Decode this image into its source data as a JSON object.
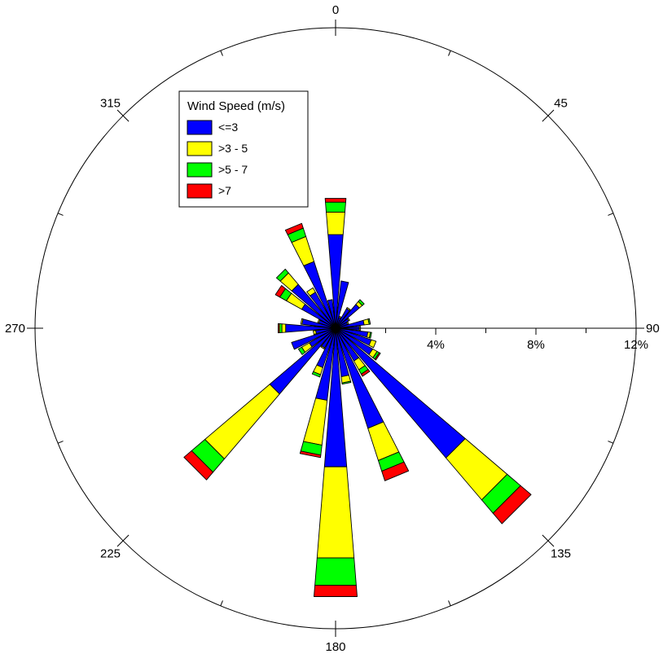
{
  "chart_data": {
    "type": "wind-rose",
    "legend": {
      "title": "Wind Speed (m/s)",
      "placement": "top-left",
      "bins": [
        {
          "label": "<=3",
          "color": "#0000ff"
        },
        {
          "label": ">3 - 5",
          "color": "#ffff00"
        },
        {
          "label": ">5 - 7",
          "color": "#00ff00"
        },
        {
          "label": ">7",
          "color": "#ff0000"
        }
      ]
    },
    "direction_labels": [
      {
        "angle": 0,
        "text": "0"
      },
      {
        "angle": 45,
        "text": "45"
      },
      {
        "angle": 90,
        "text": "90"
      },
      {
        "angle": 135,
        "text": "135"
      },
      {
        "angle": 180,
        "text": "180"
      },
      {
        "angle": 225,
        "text": "225"
      },
      {
        "angle": 270,
        "text": "270"
      },
      {
        "angle": 315,
        "text": "315"
      }
    ],
    "radial_axis": {
      "max": 12,
      "ticks": [
        {
          "value": 4,
          "text": "4%"
        },
        {
          "value": 8,
          "text": "8%"
        },
        {
          "value": 12,
          "text": "12%"
        }
      ],
      "minor_tick_step": 2
    },
    "directions": [
      {
        "dir": 0,
        "stack": [
          3.75,
          0.9,
          0.4,
          0.15
        ]
      },
      {
        "dir": 11.25,
        "stack": [
          1.9,
          0.0,
          0.0,
          0.0
        ]
      },
      {
        "dir": 22.5,
        "stack": [
          0.45,
          0.05,
          0.0,
          0.0
        ]
      },
      {
        "dir": 33.75,
        "stack": [
          0.9,
          0.05,
          0.0,
          0.0
        ]
      },
      {
        "dir": 45,
        "stack": [
          1.25,
          0.15,
          0.1,
          0.0
        ]
      },
      {
        "dir": 56.25,
        "stack": [
          0.6,
          0.05,
          0.0,
          0.0
        ]
      },
      {
        "dir": 67.5,
        "stack": [
          0.5,
          0.05,
          0.0,
          0.0
        ]
      },
      {
        "dir": 78.75,
        "stack": [
          1.15,
          0.2,
          0.05,
          0.0
        ]
      },
      {
        "dir": 90,
        "stack": [
          0.95,
          0.05,
          0.0,
          0.0
        ]
      },
      {
        "dir": 101.25,
        "stack": [
          1.3,
          0.1,
          0.05,
          0.0
        ]
      },
      {
        "dir": 112.5,
        "stack": [
          1.5,
          0.2,
          0.0,
          0.0
        ]
      },
      {
        "dir": 123.75,
        "stack": [
          1.7,
          0.2,
          0.1,
          0.05
        ]
      },
      {
        "dir": 135,
        "stack": [
          6.8,
          2.2,
          0.7,
          0.55
        ]
      },
      {
        "dir": 146.25,
        "stack": [
          1.5,
          0.4,
          0.2,
          0.1
        ]
      },
      {
        "dir": 157.5,
        "stack": [
          4.2,
          1.35,
          0.45,
          0.4
        ]
      },
      {
        "dir": 168.75,
        "stack": [
          1.95,
          0.25,
          0.05,
          0.0
        ]
      },
      {
        "dir": 180,
        "stack": [
          5.55,
          3.65,
          1.1,
          0.45
        ]
      },
      {
        "dir": 191.25,
        "stack": [
          2.9,
          1.8,
          0.4,
          0.1
        ]
      },
      {
        "dir": 202.5,
        "stack": [
          1.65,
          0.3,
          0.1,
          0.0
        ]
      },
      {
        "dir": 213.75,
        "stack": [
          0.9,
          0.05,
          0.0,
          0.0
        ]
      },
      {
        "dir": 225,
        "stack": [
          3.45,
          3.4,
          0.7,
          0.4
        ]
      },
      {
        "dir": 236.25,
        "stack": [
          1.2,
          0.35,
          0.15,
          0.0
        ]
      },
      {
        "dir": 247.5,
        "stack": [
          1.85,
          0.0,
          0.0,
          0.0
        ]
      },
      {
        "dir": 258.75,
        "stack": [
          0.8,
          0.1,
          0.0,
          0.0
        ]
      },
      {
        "dir": 270,
        "stack": [
          2.0,
          0.15,
          0.1,
          0.05
        ]
      },
      {
        "dir": 281.25,
        "stack": [
          1.35,
          0.05,
          0.0,
          0.0
        ]
      },
      {
        "dir": 292.5,
        "stack": [
          0.7,
          0.05,
          0.0,
          0.0
        ]
      },
      {
        "dir": 303.75,
        "stack": [
          1.55,
          0.7,
          0.3,
          0.2
        ]
      },
      {
        "dir": 315,
        "stack": [
          2.3,
          0.6,
          0.2,
          0.0
        ]
      },
      {
        "dir": 326.25,
        "stack": [
          1.65,
          0.2,
          0.0,
          0.0
        ]
      },
      {
        "dir": 337.5,
        "stack": [
          2.8,
          1.05,
          0.35,
          0.2
        ]
      },
      {
        "dir": 348.75,
        "stack": [
          1.15,
          0.0,
          0.0,
          0.0
        ]
      }
    ]
  }
}
